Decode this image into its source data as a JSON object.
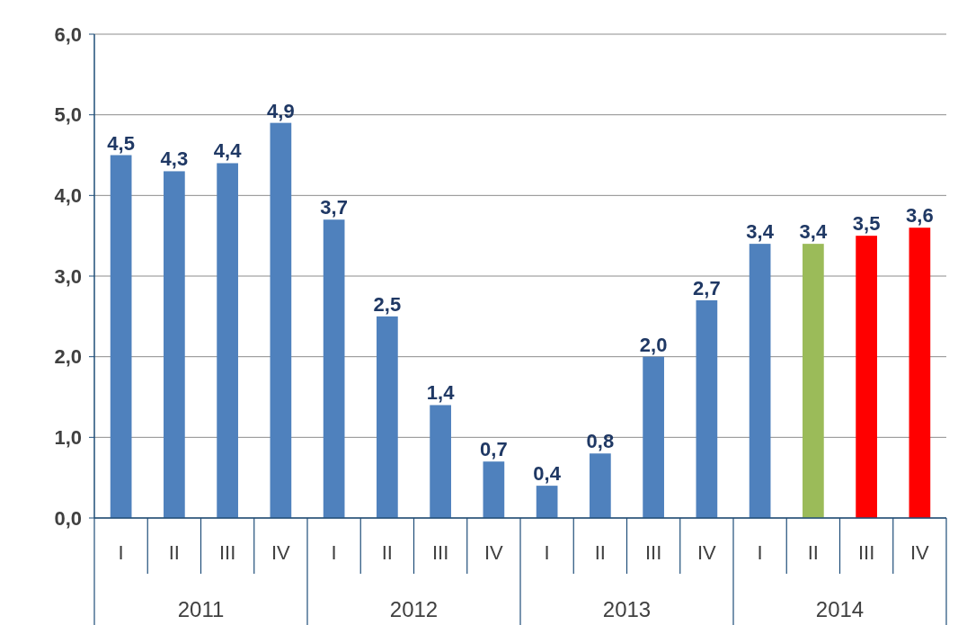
{
  "chart_data": {
    "type": "bar",
    "categories": [
      "I",
      "II",
      "III",
      "IV",
      "I",
      "II",
      "III",
      "IV",
      "I",
      "II",
      "III",
      "IV",
      "I",
      "II",
      "III",
      "IV"
    ],
    "values": [
      4.5,
      4.3,
      4.4,
      4.9,
      3.7,
      2.5,
      1.4,
      0.7,
      0.4,
      0.8,
      2.0,
      2.7,
      3.4,
      3.4,
      3.5,
      3.6
    ],
    "colors": [
      "#4f81bd",
      "#4f81bd",
      "#4f81bd",
      "#4f81bd",
      "#4f81bd",
      "#4f81bd",
      "#4f81bd",
      "#4f81bd",
      "#4f81bd",
      "#4f81bd",
      "#4f81bd",
      "#4f81bd",
      "#4f81bd",
      "#9bbb59",
      "#ff0000",
      "#ff0000"
    ],
    "value_labels": [
      "4,5",
      "4,3",
      "4,4",
      "4,9",
      "3,7",
      "2,5",
      "1,4",
      "0,7",
      "0,4",
      "0,8",
      "2,0",
      "2,7",
      "3,4",
      "3,4",
      "3,5",
      "3,6"
    ],
    "ylim": [
      0,
      6
    ],
    "yticks": [
      {
        "value": 0,
        "label": "0,0"
      },
      {
        "value": 1,
        "label": "1,0"
      },
      {
        "value": 2,
        "label": "2,0"
      },
      {
        "value": 3,
        "label": "3,0"
      },
      {
        "value": 4,
        "label": "4,0"
      },
      {
        "value": 5,
        "label": "5,0"
      },
      {
        "value": 6,
        "label": "6,0"
      }
    ],
    "grid": "y",
    "annotations": [
      "2011",
      "2012",
      "2013",
      "2014"
    ]
  }
}
